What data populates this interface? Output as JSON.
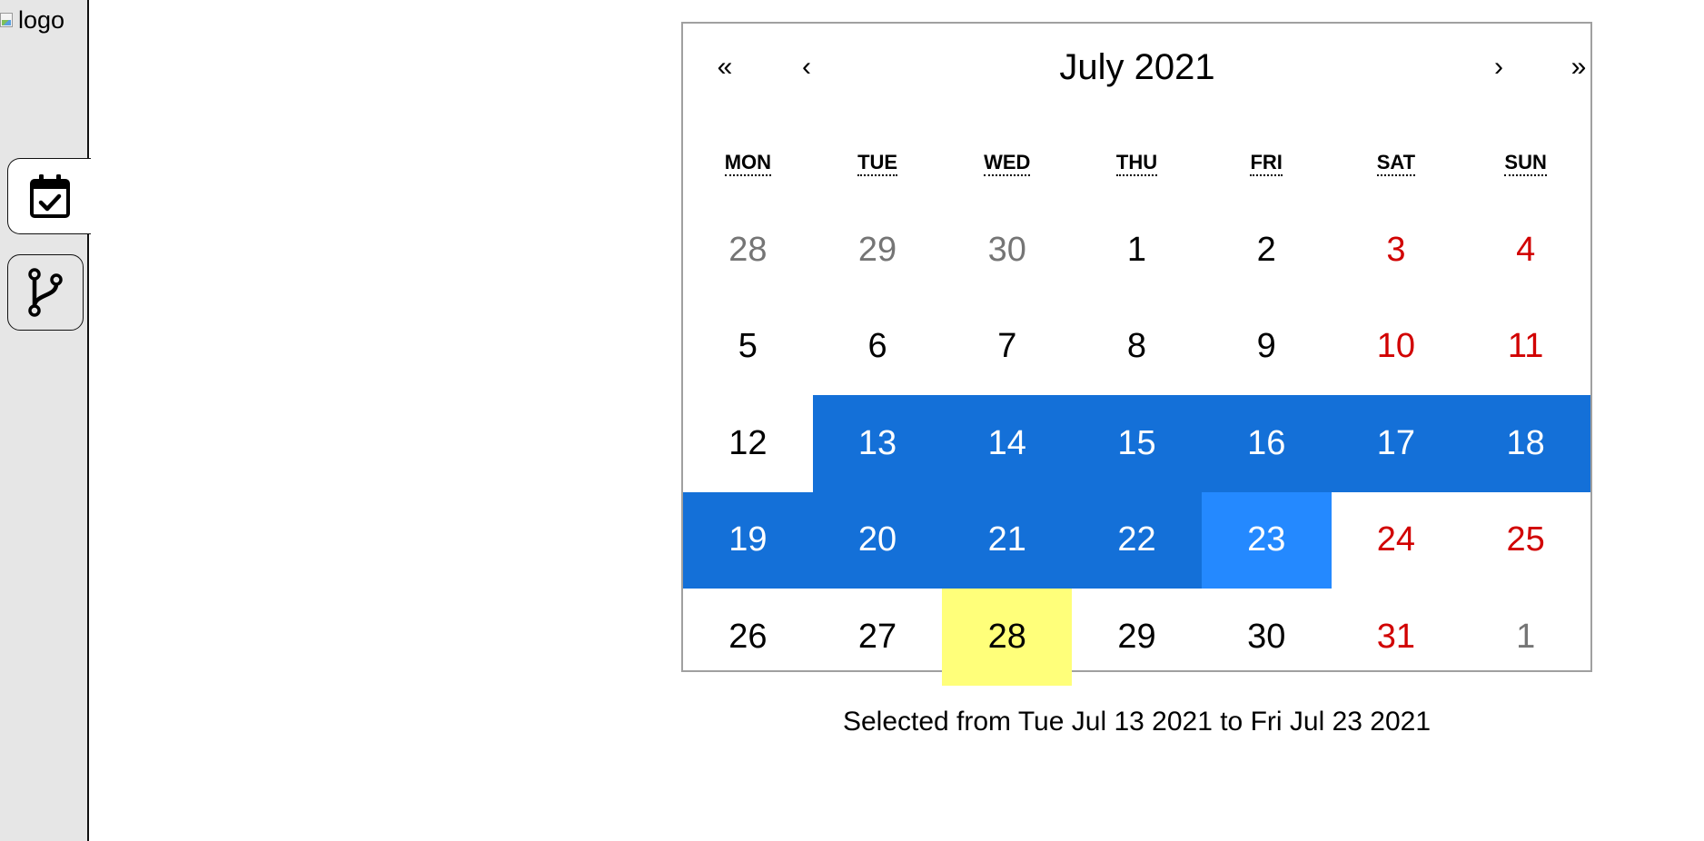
{
  "sidebar": {
    "logo_alt": "logo",
    "tabs": [
      {
        "name": "calendar-tab",
        "icon": "calendar-check-icon",
        "active": true
      },
      {
        "name": "git-branch-tab",
        "icon": "git-branch-icon",
        "active": false
      }
    ]
  },
  "calendar": {
    "nav": {
      "prev2": "«",
      "prev": "‹",
      "label": "July 2021",
      "next": "›",
      "next2": "»"
    },
    "weekdays": [
      "MON",
      "TUE",
      "WED",
      "THU",
      "FRI",
      "SAT",
      "SUN"
    ],
    "days": [
      {
        "d": "28",
        "type": "neighbor"
      },
      {
        "d": "29",
        "type": "neighbor"
      },
      {
        "d": "30",
        "type": "neighbor"
      },
      {
        "d": "1",
        "type": "normal"
      },
      {
        "d": "2",
        "type": "normal"
      },
      {
        "d": "3",
        "type": "weekend"
      },
      {
        "d": "4",
        "type": "weekend"
      },
      {
        "d": "5",
        "type": "normal"
      },
      {
        "d": "6",
        "type": "normal"
      },
      {
        "d": "7",
        "type": "normal"
      },
      {
        "d": "8",
        "type": "normal"
      },
      {
        "d": "9",
        "type": "normal"
      },
      {
        "d": "10",
        "type": "weekend"
      },
      {
        "d": "11",
        "type": "weekend"
      },
      {
        "d": "12",
        "type": "normal"
      },
      {
        "d": "13",
        "type": "in-range"
      },
      {
        "d": "14",
        "type": "in-range"
      },
      {
        "d": "15",
        "type": "in-range"
      },
      {
        "d": "16",
        "type": "in-range"
      },
      {
        "d": "17",
        "type": "in-range"
      },
      {
        "d": "18",
        "type": "in-range"
      },
      {
        "d": "19",
        "type": "in-range"
      },
      {
        "d": "20",
        "type": "in-range"
      },
      {
        "d": "21",
        "type": "in-range"
      },
      {
        "d": "22",
        "type": "in-range"
      },
      {
        "d": "23",
        "type": "range-end"
      },
      {
        "d": "24",
        "type": "weekend"
      },
      {
        "d": "25",
        "type": "weekend"
      },
      {
        "d": "26",
        "type": "normal"
      },
      {
        "d": "27",
        "type": "normal"
      },
      {
        "d": "28",
        "type": "today"
      },
      {
        "d": "29",
        "type": "normal"
      },
      {
        "d": "30",
        "type": "normal"
      },
      {
        "d": "31",
        "type": "weekend"
      },
      {
        "d": "1",
        "type": "neighbor"
      }
    ]
  },
  "selection_text": "Selected from Tue Jul 13 2021 to Fri Jul 23 2021",
  "colors": {
    "range": "#1470d8",
    "range_end": "#2489ff",
    "today": "#ffff7a",
    "weekend": "#d10000",
    "neighbor": "#757575",
    "sidebar_bg": "#e6e6e6"
  }
}
